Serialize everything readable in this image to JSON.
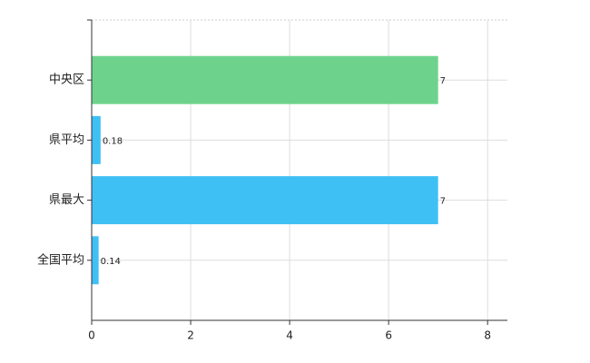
{
  "chart_data": {
    "type": "hbar",
    "categories": [
      "中央区",
      "県平均",
      "県最大",
      "全国平均"
    ],
    "values": [
      7,
      0.18,
      7,
      0.14
    ],
    "colors": [
      "#6dd38c",
      "#3fc0f5",
      "#3fc0f5",
      "#3fc0f5"
    ],
    "xlim": [
      0,
      8.4
    ],
    "xticks": [
      0,
      2,
      4,
      6,
      8
    ],
    "grid": true
  }
}
